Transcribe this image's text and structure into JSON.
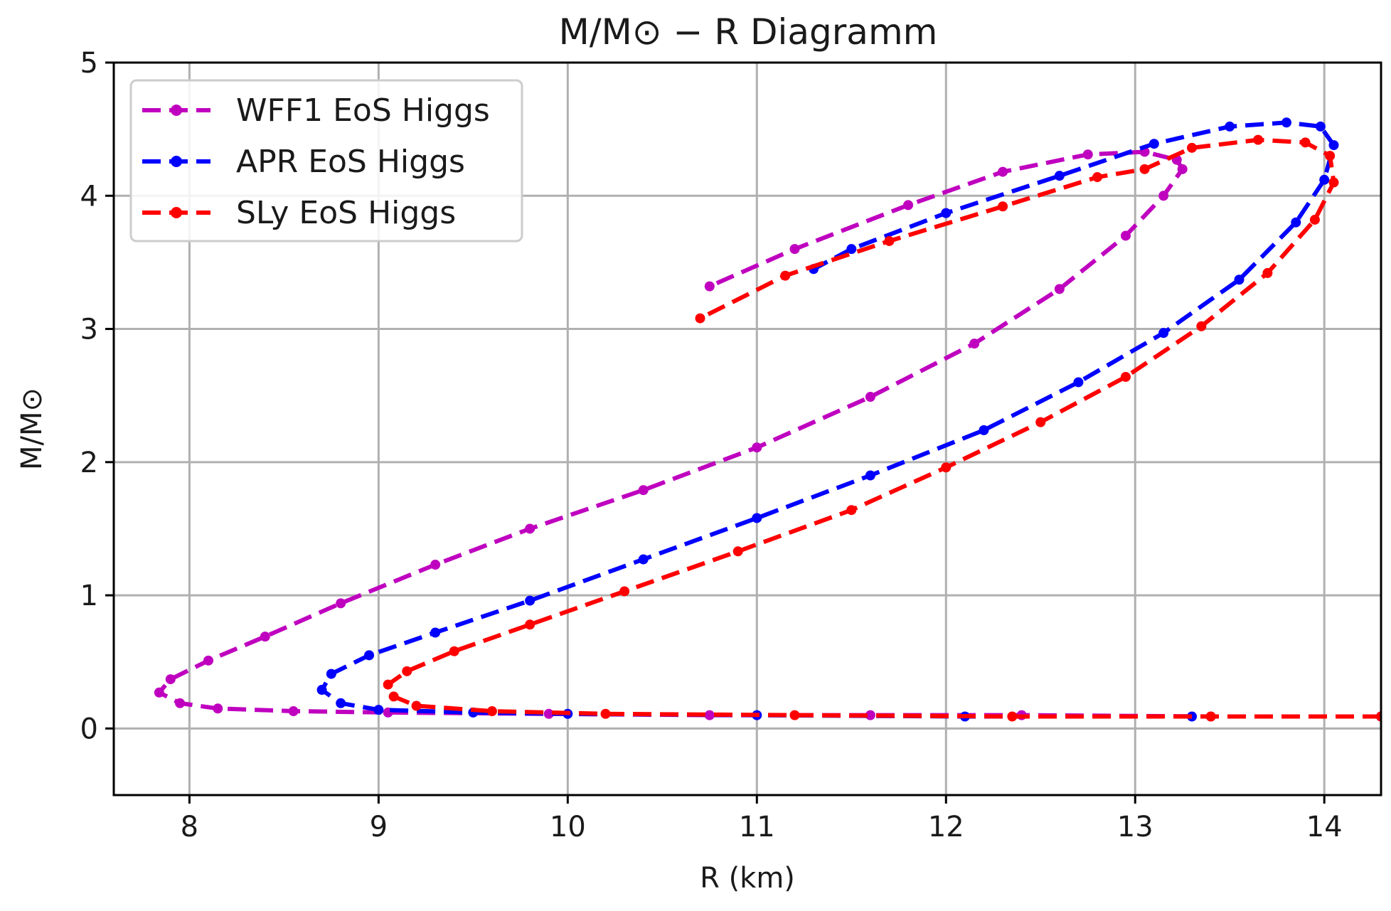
{
  "chart_data": {
    "type": "line",
    "title": "M/M⊙ − R Diagramm",
    "xlabel": "R (km)",
    "ylabel": "M/M⊙",
    "xlim": [
      7.6,
      14.3
    ],
    "ylim": [
      -0.5,
      5
    ],
    "xticks": [
      8,
      9,
      10,
      11,
      12,
      13,
      14
    ],
    "yticks": [
      0,
      1,
      2,
      3,
      4,
      5
    ],
    "grid": true,
    "legend_position": "top-left",
    "series": [
      {
        "name": "WFF1 EoS Higgs",
        "color": "#bf00bf",
        "x": [
          14.3,
          13.4,
          12.4,
          11.6,
          10.75,
          9.9,
          9.05,
          8.55,
          8.15,
          7.95,
          7.84,
          7.9,
          8.1,
          8.4,
          8.8,
          9.3,
          9.8,
          10.4,
          11.0,
          11.6,
          12.15,
          12.6,
          12.95,
          13.15,
          13.25,
          13.22,
          13.05,
          12.75,
          12.3,
          11.8,
          11.2,
          10.75
        ],
        "y": [
          0.09,
          0.09,
          0.1,
          0.1,
          0.1,
          0.11,
          0.12,
          0.13,
          0.15,
          0.19,
          0.27,
          0.37,
          0.51,
          0.69,
          0.94,
          1.23,
          1.5,
          1.79,
          2.11,
          2.49,
          2.89,
          3.3,
          3.7,
          4.0,
          4.2,
          4.27,
          4.33,
          4.31,
          4.18,
          3.93,
          3.6,
          3.32
        ]
      },
      {
        "name": "APR EoS Higgs",
        "color": "#0000ff",
        "x": [
          14.3,
          13.3,
          12.1,
          11.0,
          10.0,
          9.5,
          9.0,
          8.8,
          8.7,
          8.75,
          8.95,
          9.3,
          9.8,
          10.4,
          11.0,
          11.6,
          12.2,
          12.7,
          13.15,
          13.55,
          13.85,
          14.0,
          14.05,
          13.98,
          13.8,
          13.5,
          13.1,
          12.6,
          12.0,
          11.5,
          11.3
        ],
        "y": [
          0.09,
          0.09,
          0.09,
          0.1,
          0.11,
          0.12,
          0.14,
          0.19,
          0.29,
          0.41,
          0.55,
          0.72,
          0.96,
          1.27,
          1.58,
          1.9,
          2.24,
          2.6,
          2.97,
          3.37,
          3.8,
          4.12,
          4.38,
          4.52,
          4.55,
          4.52,
          4.39,
          4.15,
          3.87,
          3.6,
          3.45
        ]
      },
      {
        "name": "SLy EoS Higgs",
        "color": "#ff0000",
        "x": [
          14.3,
          13.4,
          12.35,
          11.2,
          10.2,
          9.6,
          9.2,
          9.08,
          9.05,
          9.15,
          9.4,
          9.8,
          10.3,
          10.9,
          11.5,
          12.0,
          12.5,
          12.95,
          13.35,
          13.7,
          13.95,
          14.05,
          14.03,
          13.9,
          13.65,
          13.3,
          13.05,
          12.8,
          12.3,
          11.7,
          11.15,
          10.7
        ],
        "y": [
          0.09,
          0.09,
          0.09,
          0.1,
          0.11,
          0.13,
          0.17,
          0.24,
          0.33,
          0.43,
          0.58,
          0.78,
          1.03,
          1.33,
          1.64,
          1.96,
          2.3,
          2.64,
          3.02,
          3.42,
          3.82,
          4.1,
          4.3,
          4.4,
          4.42,
          4.36,
          4.2,
          4.14,
          3.92,
          3.66,
          3.4,
          3.08
        ]
      }
    ]
  }
}
